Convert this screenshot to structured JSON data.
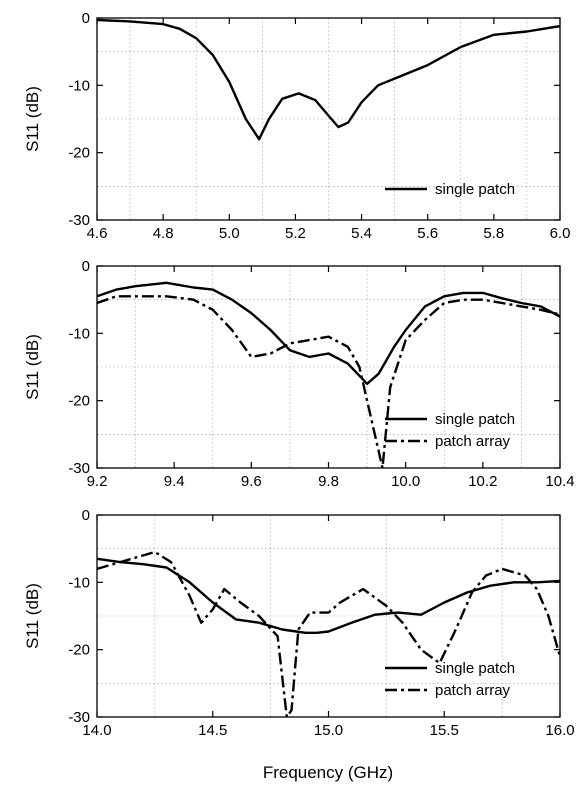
{
  "figure": {
    "xlabel": "Frequency (GHz)"
  },
  "chart_data": [
    {
      "type": "line",
      "ylabel": "S11 (dB)",
      "xlim": [
        4.6,
        6.0
      ],
      "ylim": [
        -30,
        0
      ],
      "xticks": [
        "4.6",
        "4.8",
        "5.0",
        "5.2",
        "5.4",
        "5.6",
        "5.8",
        "6.0"
      ],
      "yticks": [
        "0",
        "-10",
        "-20",
        "-30"
      ],
      "xtick_values": [
        4.6,
        4.8,
        5.0,
        5.2,
        5.4,
        5.6,
        5.8,
        6.0
      ],
      "ytick_values": [
        0,
        -10,
        -20,
        -30
      ],
      "grid": true,
      "legend_position": "bottom-right",
      "series": [
        {
          "name": "single patch",
          "style": "solid",
          "x": [
            4.6,
            4.7,
            4.8,
            4.85,
            4.9,
            4.95,
            5.0,
            5.05,
            5.09,
            5.12,
            5.16,
            5.21,
            5.26,
            5.3,
            5.33,
            5.36,
            5.4,
            5.45,
            5.5,
            5.6,
            5.7,
            5.8,
            5.9,
            6.0
          ],
          "y": [
            -0.3,
            -0.5,
            -0.9,
            -1.6,
            -3.0,
            -5.5,
            -9.5,
            -15.0,
            -18.0,
            -15.0,
            -12.0,
            -11.2,
            -12.2,
            -14.5,
            -16.2,
            -15.5,
            -12.5,
            -10.0,
            -9.0,
            -7.0,
            -4.3,
            -2.5,
            -2.0,
            -1.2
          ]
        }
      ]
    },
    {
      "type": "line",
      "ylabel": "S11 (dB)",
      "xlim": [
        9.2,
        10.4
      ],
      "ylim": [
        -30,
        0
      ],
      "xticks": [
        "9.2",
        "9.4",
        "9.6",
        "9.8",
        "10.0",
        "10.2",
        "10.4"
      ],
      "yticks": [
        "0",
        "-10",
        "-20",
        "-30"
      ],
      "xtick_values": [
        9.2,
        9.4,
        9.6,
        9.8,
        10.0,
        10.2,
        10.4
      ],
      "ytick_values": [
        0,
        -10,
        -20,
        -30
      ],
      "grid": true,
      "legend_position": "bottom-right",
      "series": [
        {
          "name": "single patch",
          "style": "solid",
          "x": [
            9.2,
            9.25,
            9.3,
            9.38,
            9.45,
            9.5,
            9.55,
            9.6,
            9.65,
            9.7,
            9.75,
            9.8,
            9.85,
            9.9,
            9.93,
            9.97,
            10.0,
            10.05,
            10.1,
            10.15,
            10.2,
            10.25,
            10.3,
            10.35,
            10.4
          ],
          "y": [
            -4.5,
            -3.5,
            -3.0,
            -2.5,
            -3.2,
            -3.5,
            -5.0,
            -7.0,
            -9.5,
            -12.5,
            -13.5,
            -13.0,
            -14.5,
            -17.5,
            -16.0,
            -12.0,
            -9.5,
            -6.0,
            -4.5,
            -4.0,
            -4.0,
            -4.8,
            -5.5,
            -6.0,
            -7.5
          ]
        },
        {
          "name": "patch array",
          "style": "dashdot",
          "x": [
            9.2,
            9.25,
            9.3,
            9.38,
            9.45,
            9.5,
            9.55,
            9.6,
            9.65,
            9.7,
            9.75,
            9.8,
            9.85,
            9.88,
            9.92,
            9.94,
            9.96,
            10.0,
            10.05,
            10.1,
            10.15,
            10.2,
            10.25,
            10.3,
            10.35,
            10.4
          ],
          "y": [
            -5.5,
            -4.5,
            -4.5,
            -4.5,
            -5.0,
            -6.5,
            -9.5,
            -13.5,
            -13.0,
            -11.5,
            -11.0,
            -10.5,
            -12.0,
            -15.0,
            -25.0,
            -30.0,
            -18.0,
            -11.0,
            -8.0,
            -5.5,
            -5.0,
            -5.0,
            -5.5,
            -6.0,
            -6.5,
            -7.2
          ]
        }
      ]
    },
    {
      "type": "line",
      "ylabel": "S11 (dB)",
      "xlabel": "Frequency (GHz)",
      "xlim": [
        14.0,
        16.0
      ],
      "ylim": [
        -30,
        0
      ],
      "xticks": [
        "14.0",
        "14.5",
        "15.0",
        "15.5",
        "16.0"
      ],
      "yticks": [
        "0",
        "-10",
        "-20",
        "-30"
      ],
      "xtick_values": [
        14.0,
        14.5,
        15.0,
        15.5,
        16.0
      ],
      "ytick_values": [
        0,
        -10,
        -20,
        -30
      ],
      "grid": true,
      "legend_position": "bottom-right",
      "series": [
        {
          "name": "single patch",
          "style": "solid",
          "x": [
            14.0,
            14.1,
            14.2,
            14.3,
            14.4,
            14.5,
            14.6,
            14.7,
            14.8,
            14.9,
            14.95,
            15.0,
            15.1,
            15.2,
            15.3,
            15.4,
            15.5,
            15.6,
            15.7,
            15.8,
            15.9,
            16.0
          ],
          "y": [
            -6.5,
            -7.0,
            -7.3,
            -7.8,
            -10.0,
            -13.0,
            -15.5,
            -16.0,
            -17.0,
            -17.5,
            -17.5,
            -17.3,
            -16.0,
            -14.8,
            -14.5,
            -14.8,
            -13.0,
            -11.5,
            -10.5,
            -10.0,
            -10.0,
            -9.8
          ]
        },
        {
          "name": "patch array",
          "style": "dashdot",
          "x": [
            14.0,
            14.1,
            14.2,
            14.25,
            14.32,
            14.4,
            14.45,
            14.5,
            14.55,
            14.62,
            14.7,
            14.78,
            14.82,
            14.84,
            14.87,
            14.92,
            15.0,
            15.05,
            15.15,
            15.25,
            15.32,
            15.4,
            15.48,
            15.55,
            15.62,
            15.68,
            15.75,
            15.85,
            15.9,
            15.95,
            16.0
          ],
          "y": [
            -8.0,
            -7.0,
            -6.0,
            -5.5,
            -7.0,
            -12.0,
            -16.0,
            -14.0,
            -11.0,
            -13.0,
            -15.0,
            -18.0,
            -30.0,
            -29.0,
            -17.0,
            -14.5,
            -14.5,
            -13.0,
            -11.0,
            -13.5,
            -16.0,
            -20.0,
            -22.0,
            -17.0,
            -11.5,
            -9.0,
            -8.0,
            -9.0,
            -11.0,
            -15.0,
            -21.0
          ]
        }
      ]
    }
  ]
}
